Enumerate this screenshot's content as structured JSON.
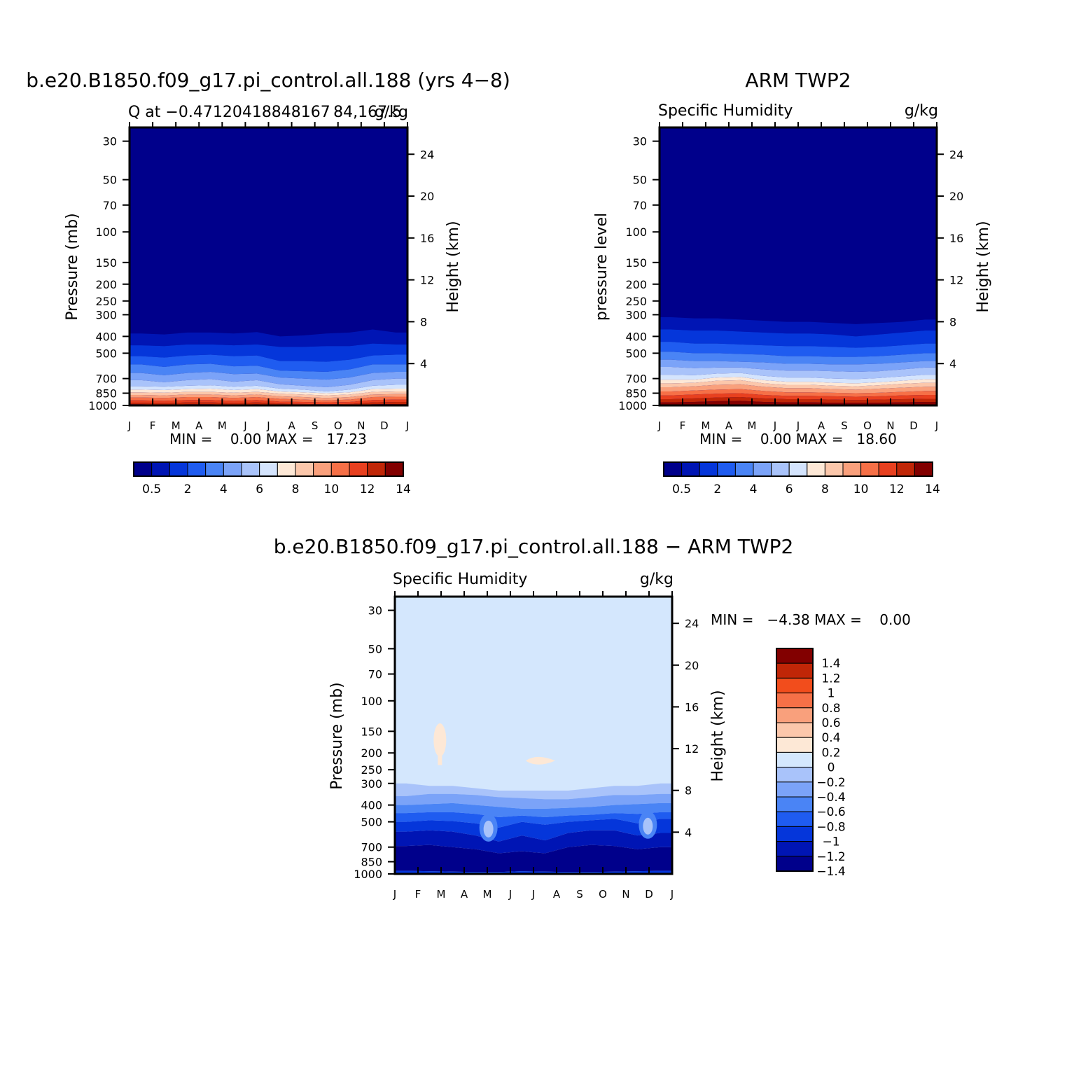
{
  "colors": {
    "q_palette": [
      "#00008b",
      "#0015b4",
      "#0536da",
      "#1f5cf0",
      "#4a84f5",
      "#7ba3f8",
      "#a9c3fa",
      "#d4e4fd",
      "#fde8d6",
      "#fbc7ab",
      "#f9a07c",
      "#f67047",
      "#e8401f",
      "#c02607",
      "#820000"
    ],
    "diff_palette": [
      "#00008b",
      "#0015b4",
      "#0536da",
      "#1f5cf0",
      "#4a84f5",
      "#7ba3f8",
      "#a9c3fa",
      "#d4e7fd",
      "#fde8d6",
      "#fbc7ab",
      "#f9a07c",
      "#f67047",
      "#f24d1c",
      "#c02607",
      "#820000"
    ],
    "frame": "#000000"
  },
  "chart_data": [
    {
      "type": "heatmap",
      "title": "b.e20.B1850.f09_g17.pi_control.all.188 (yrs 4−8)",
      "left_label": "Q at −0.47120418848167 84,167.5",
      "right_label": "g/kg",
      "ylabel": "Pressure (mb)",
      "ylabel_right": "Height (km)",
      "months": [
        "J",
        "F",
        "M",
        "A",
        "M",
        "J",
        "J",
        "A",
        "S",
        "O",
        "N",
        "D",
        "J"
      ],
      "pressure_ticks": [
        "30",
        "50",
        "70",
        "100",
        "150",
        "200",
        "250",
        "300",
        "400",
        "500",
        "700",
        "850",
        "1000"
      ],
      "height_ticks": [
        "24",
        "20",
        "16",
        "12",
        "8",
        "4"
      ],
      "stats": "MIN =    0.00 MAX =   17.23",
      "colorbar_labels": [
        "0.5",
        "2",
        "4",
        "6",
        "8",
        "10",
        "12",
        "14"
      ],
      "boundary_pressure_mb": [
        [
          385,
          390,
          380,
          380,
          385,
          378,
          400,
          395,
          385,
          380,
          365,
          380
        ],
        [
          450,
          455,
          445,
          445,
          450,
          445,
          460,
          460,
          455,
          455,
          440,
          445
        ],
        [
          520,
          530,
          515,
          510,
          520,
          515,
          555,
          555,
          560,
          545,
          515,
          510
        ],
        [
          580,
          600,
          580,
          575,
          595,
          590,
          630,
          635,
          640,
          620,
          580,
          580
        ],
        [
          650,
          670,
          650,
          640,
          660,
          655,
          690,
          700,
          710,
          690,
          650,
          640
        ],
        [
          715,
          735,
          715,
          705,
          730,
          715,
          755,
          770,
          785,
          760,
          715,
          700
        ],
        [
          775,
          780,
          770,
          765,
          780,
          770,
          800,
          810,
          830,
          810,
          770,
          760
        ],
        [
          810,
          815,
          805,
          800,
          815,
          805,
          830,
          840,
          850,
          840,
          805,
          800
        ],
        [
          840,
          845,
          835,
          835,
          845,
          835,
          855,
          865,
          875,
          865,
          835,
          830
        ],
        [
          870,
          875,
          865,
          865,
          875,
          865,
          885,
          895,
          905,
          895,
          865,
          860
        ],
        [
          900,
          905,
          895,
          895,
          905,
          895,
          915,
          925,
          935,
          925,
          895,
          890
        ],
        [
          935,
          940,
          930,
          930,
          940,
          930,
          950,
          955,
          960,
          955,
          930,
          925
        ],
        [
          965,
          970,
          960,
          960,
          970,
          960,
          975,
          980,
          985,
          980,
          960,
          955
        ],
        [
          985,
          990,
          985,
          985,
          990,
          985,
          992,
          995,
          997,
          995,
          985,
          982
        ]
      ]
    },
    {
      "type": "heatmap",
      "title": "ARM TWP2",
      "left_label": "Specific Humidity",
      "right_label": "g/kg",
      "ylabel": "pressure level",
      "ylabel_right": "Height (km)",
      "months": [
        "J",
        "F",
        "M",
        "A",
        "M",
        "J",
        "J",
        "A",
        "S",
        "O",
        "N",
        "D",
        "J"
      ],
      "pressure_ticks": [
        "30",
        "50",
        "70",
        "100",
        "150",
        "200",
        "250",
        "300",
        "400",
        "500",
        "700",
        "850",
        "1000"
      ],
      "height_ticks": [
        "24",
        "20",
        "16",
        "12",
        "8",
        "4"
      ],
      "stats": "MIN =    0.00 MAX =   18.60",
      "colorbar_labels": [
        "0.5",
        "2",
        "4",
        "6",
        "8",
        "10",
        "12",
        "14"
      ],
      "boundary_pressure_mb": [
        [
          310,
          315,
          315,
          320,
          325,
          330,
          330,
          335,
          340,
          335,
          330,
          320
        ],
        [
          365,
          370,
          370,
          375,
          380,
          385,
          385,
          390,
          400,
          390,
          380,
          370
        ],
        [
          430,
          440,
          440,
          445,
          450,
          455,
          455,
          460,
          465,
          460,
          450,
          440
        ],
        [
          490,
          500,
          500,
          505,
          510,
          520,
          520,
          525,
          525,
          520,
          510,
          500
        ],
        [
          545,
          555,
          555,
          560,
          565,
          575,
          575,
          580,
          580,
          575,
          565,
          555
        ],
        [
          600,
          610,
          605,
          605,
          620,
          630,
          630,
          635,
          640,
          635,
          620,
          605
        ],
        [
          665,
          670,
          655,
          650,
          675,
          690,
          690,
          700,
          705,
          695,
          680,
          665
        ],
        [
          710,
          710,
          690,
          685,
          715,
          730,
          730,
          740,
          745,
          735,
          720,
          705
        ],
        [
          745,
          740,
          720,
          715,
          745,
          760,
          760,
          770,
          775,
          765,
          750,
          740
        ],
        [
          785,
          775,
          760,
          755,
          780,
          795,
          795,
          805,
          810,
          800,
          790,
          780
        ],
        [
          830,
          820,
          810,
          805,
          825,
          840,
          840,
          845,
          850,
          845,
          835,
          825
        ],
        [
          875,
          865,
          855,
          850,
          870,
          880,
          880,
          885,
          890,
          885,
          875,
          870
        ],
        [
          920,
          910,
          900,
          895,
          910,
          920,
          920,
          925,
          930,
          925,
          920,
          915
        ],
        [
          960,
          955,
          945,
          940,
          955,
          960,
          960,
          965,
          965,
          965,
          960,
          955
        ]
      ]
    },
    {
      "type": "heatmap",
      "title": "b.e20.B1850.f09_g17.pi_control.all.188 − ARM TWP2",
      "left_label": "Specific Humidity",
      "right_label": "g/kg",
      "ylabel": "Pressure (mb)",
      "ylabel_right": "Height (km)",
      "months": [
        "J",
        "F",
        "M",
        "A",
        "M",
        "J",
        "J",
        "A",
        "S",
        "O",
        "N",
        "D",
        "J"
      ],
      "pressure_ticks": [
        "30",
        "50",
        "70",
        "100",
        "150",
        "200",
        "250",
        "300",
        "400",
        "500",
        "700",
        "850",
        "1000"
      ],
      "height_ticks": [
        "24",
        "20",
        "16",
        "12",
        "8",
        "4"
      ],
      "stats": "MIN =   −4.38 MAX =    0.00",
      "colorbar_labels": [
        "1.4",
        "1.2",
        "1",
        "0.8",
        "0.6",
        "0.4",
        "0.2",
        "0",
        "−0.2",
        "−0.4",
        "−0.6",
        "−0.8",
        "−1",
        "−1.2",
        "−1.4"
      ],
      "background_value": "-0.2 to 0",
      "bands": [
        {
          "lower_mb": [
            300,
            310,
            310,
            320,
            330,
            330,
            330,
            330,
            320,
            310,
            310,
            300
          ],
          "upper_mb": [
            355,
            345,
            345,
            350,
            360,
            365,
            370,
            370,
            360,
            350,
            350,
            345
          ],
          "class": 6
        },
        {
          "lower_mb": [
            355,
            345,
            345,
            350,
            360,
            365,
            370,
            370,
            360,
            350,
            350,
            345
          ],
          "upper_mb": [
            400,
            395,
            390,
            400,
            410,
            420,
            420,
            415,
            410,
            400,
            395,
            390
          ],
          "class": 5
        },
        {
          "lower_mb": [
            400,
            395,
            390,
            400,
            410,
            420,
            420,
            415,
            410,
            400,
            395,
            390
          ],
          "upper_mb": [
            445,
            440,
            440,
            450,
            470,
            460,
            470,
            460,
            455,
            445,
            450,
            440
          ],
          "class": 4
        },
        {
          "lower_mb": [
            445,
            440,
            440,
            450,
            470,
            460,
            470,
            460,
            455,
            445,
            450,
            440
          ],
          "upper_mb": [
            500,
            490,
            495,
            510,
            540,
            500,
            520,
            500,
            490,
            480,
            510,
            480
          ],
          "class": 3
        },
        {
          "lower_mb": [
            500,
            490,
            495,
            510,
            540,
            500,
            520,
            500,
            490,
            480,
            510,
            480
          ],
          "upper_mb": [
            570,
            560,
            570,
            600,
            650,
            600,
            640,
            580,
            560,
            560,
            600,
            580
          ],
          "class": 2
        },
        {
          "lower_mb": [
            570,
            560,
            570,
            600,
            650,
            600,
            640,
            580,
            560,
            560,
            600,
            580
          ],
          "upper_mb": [
            690,
            680,
            700,
            720,
            760,
            740,
            760,
            700,
            680,
            690,
            720,
            700
          ],
          "class": 1
        },
        {
          "lower_mb": [
            690,
            680,
            700,
            720,
            760,
            740,
            760,
            700,
            680,
            690,
            720,
            700
          ],
          "upper_mb": [
            960,
            965,
            970,
            975,
            975,
            965,
            970,
            975,
            975,
            970,
            965,
            960
          ],
          "class": 0
        },
        {
          "lower_mb": [
            960,
            965,
            970,
            975,
            975,
            965,
            970,
            975,
            975,
            970,
            965,
            960
          ],
          "upper_mb": [
            990,
            990,
            990,
            990,
            990,
            990,
            990,
            990,
            990,
            990,
            990,
            990
          ],
          "class": 2
        }
      ],
      "positive_spots": [
        {
          "month_pos": 1.95,
          "p_top_mb": 135,
          "p_bottom_mb": 235,
          "class": 8
        },
        {
          "month_pos": 6.15,
          "p_top_mb": 212,
          "p_bottom_mb": 232,
          "class": 8
        }
      ],
      "light_spots": [
        {
          "month_pos": 4.05,
          "p_center_mb": 540,
          "class": 6
        },
        {
          "month_pos": 10.95,
          "p_center_mb": 520,
          "class": 6
        }
      ]
    }
  ]
}
